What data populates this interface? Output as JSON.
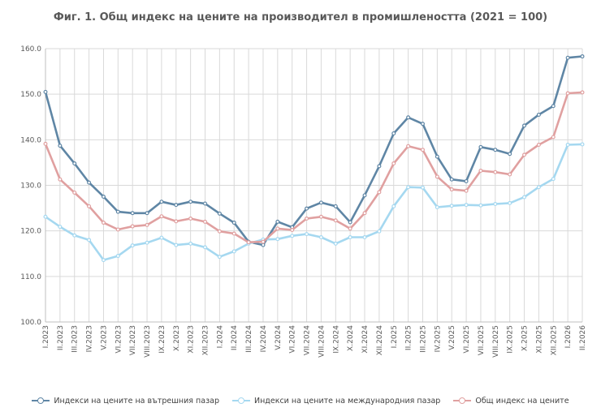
{
  "title": "Фиг. 1. Общ индекс на цените на производител в промишлеността (2021 = 100)",
  "chart_data": {
    "type": "line",
    "title": "Фиг. 1. Общ индекс на цените на производител в промишлеността (2021 = 100)",
    "categories": [
      "I.2023",
      "II.2023",
      "III.2023",
      "IV.2023",
      "V.2023",
      "VI.2023",
      "VII.2023",
      "VIII.2023",
      "IX.2023",
      "X.2023",
      "XI.2023",
      "XII.2023",
      "I.2024",
      "II.2024",
      "III.2024",
      "IV.2024",
      "V.2024",
      "VI.2024",
      "VII.2024",
      "VIII.2024",
      "IX.2024",
      "X.2024",
      "XI.2024",
      "XII.2024",
      "I.2025",
      "II.2025",
      "III.2025",
      "IV.2025",
      "V.2025",
      "VI.2025",
      "VII.2025",
      "VIII.2025",
      "IX.2025",
      "X.2025",
      "XI.2025",
      "XII.2025",
      "I.2026",
      "II.2026"
    ],
    "ylim": [
      100,
      160
    ],
    "yticks": [
      "100.0",
      "110.0",
      "120.0",
      "130.0",
      "140.0",
      "150.0",
      "160.0"
    ],
    "grid": true,
    "legend_position": "bottom",
    "series": [
      {
        "name": "Индекси на цените на вътрешния пазар",
        "color": "#5f86a5",
        "values": [
          150.5,
          138.7,
          134.8,
          130.6,
          127.5,
          124.2,
          123.9,
          123.9,
          126.4,
          125.7,
          126.4,
          126.0,
          123.8,
          121.8,
          117.6,
          116.9,
          122.0,
          120.8,
          124.9,
          126.2,
          125.4,
          121.9,
          127.8,
          134.2,
          141.4,
          144.9,
          143.5,
          136.3,
          131.3,
          130.9,
          138.4,
          137.8,
          136.9,
          143.1,
          145.5,
          147.4,
          158.0,
          158.3
        ]
      },
      {
        "name": "Индекси на цените на международния пазар",
        "color": "#a5d8f0",
        "values": [
          123.1,
          120.9,
          119.0,
          118.0,
          113.6,
          114.5,
          116.8,
          117.4,
          118.5,
          116.9,
          117.2,
          116.4,
          114.3,
          115.5,
          117.2,
          118.1,
          118.2,
          118.9,
          119.3,
          118.6,
          117.2,
          118.6,
          118.6,
          119.9,
          125.4,
          129.6,
          129.5,
          125.2,
          125.5,
          125.7,
          125.6,
          125.9,
          126.1,
          127.4,
          129.6,
          131.4,
          138.9,
          139.0
        ]
      },
      {
        "name": "Общ индекс на цените",
        "color": "#e0a0a0",
        "values": [
          139.1,
          131.3,
          128.4,
          125.4,
          121.8,
          120.3,
          121.0,
          121.3,
          123.2,
          122.1,
          122.7,
          122.0,
          119.9,
          119.4,
          117.5,
          117.6,
          120.5,
          120.2,
          122.7,
          123.1,
          122.3,
          120.5,
          123.9,
          128.5,
          134.8,
          138.6,
          137.8,
          131.9,
          129.1,
          128.8,
          133.2,
          132.9,
          132.4,
          136.7,
          138.9,
          140.6,
          150.2,
          150.4
        ]
      }
    ]
  }
}
